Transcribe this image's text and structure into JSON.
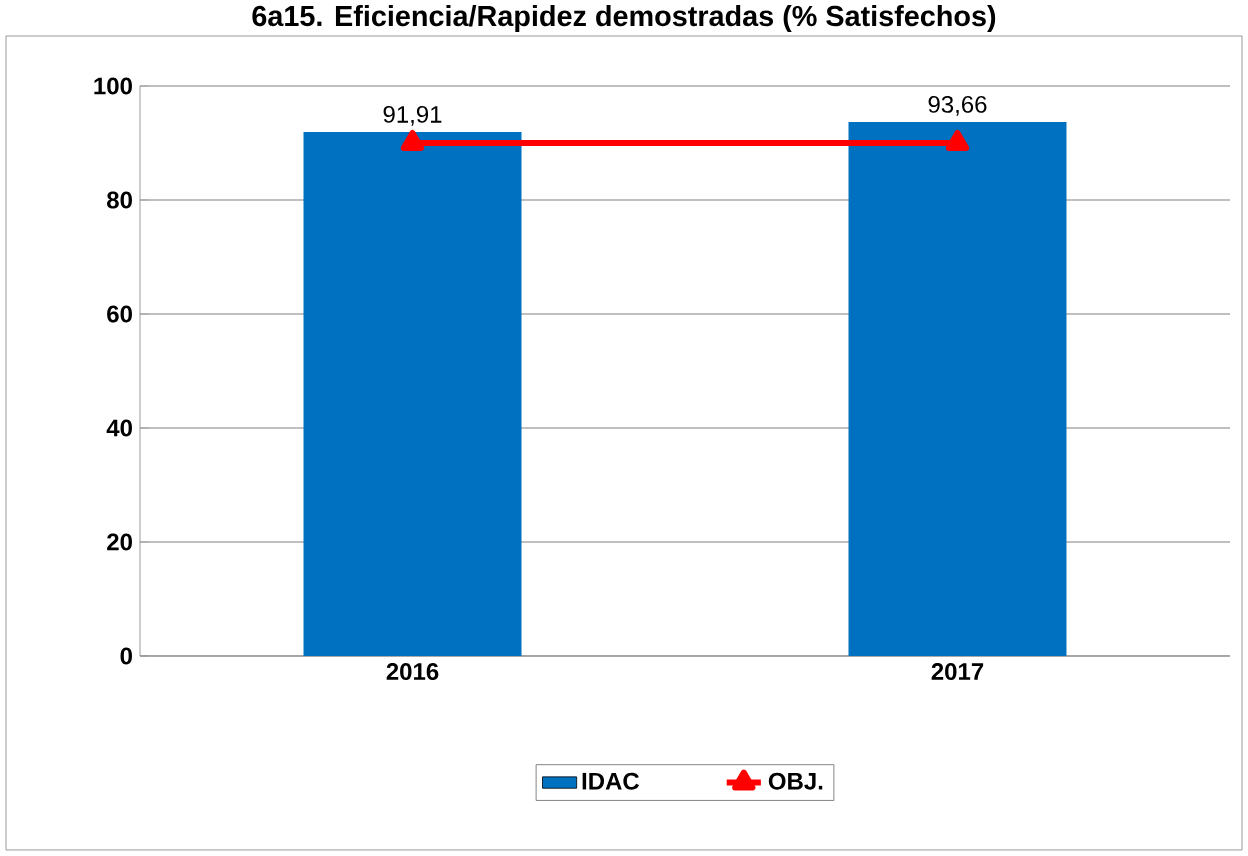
{
  "chart_data": {
    "type": "bar",
    "title": "6a15. Eficiencia/Rapidez demostradas (% Satisfechos)",
    "categories": [
      "2016",
      "2017"
    ],
    "series": [
      {
        "name": "IDAC",
        "color": "#0070c0",
        "values": [
          91.91,
          93.66
        ],
        "value_labels": [
          "91,91",
          "93,66"
        ]
      },
      {
        "name": "OBJ.",
        "type": "line",
        "color": "#ff0000",
        "values": [
          90,
          90
        ],
        "marker": "triangle"
      }
    ],
    "ylim": [
      0,
      100
    ],
    "yticks": [
      0,
      20,
      40,
      60,
      80,
      100
    ],
    "grid": "y",
    "legend": "bottom"
  }
}
